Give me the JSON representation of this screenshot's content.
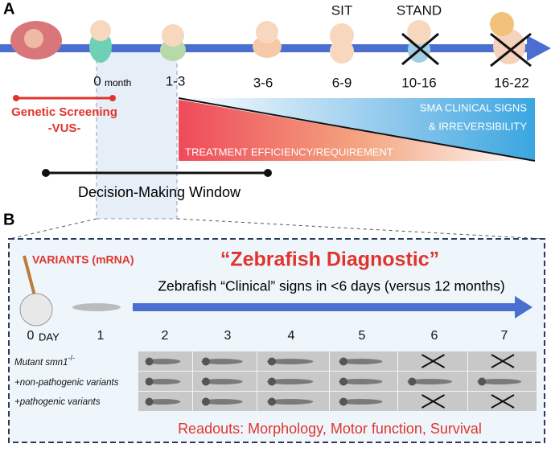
{
  "panel_a": {
    "label": "A",
    "milestones": [
      "SIT",
      "STAND"
    ],
    "ages": [
      "0",
      "1-3",
      "3-6",
      "6-9",
      "10-16",
      "16-22"
    ],
    "age_unit": "month",
    "screening": {
      "title": "Genetic Screening",
      "subtitle": "-VUS-"
    },
    "signs_label": [
      "SMA CLINICAL SIGNS",
      "& IRREVERSIBILITY"
    ],
    "treatment_label": "TREATMENT EFFICIENCY/REQUIREMENT",
    "window_label": "Decision-Making Window"
  },
  "panel_b": {
    "label": "B",
    "variants": "VARIANTS (mRNA)",
    "title": "“Zebrafish Diagnostic”",
    "subtitle": "Zebrafish “Clinical” signs in <6 days (versus 12 months)",
    "day_zero": "0",
    "day_unit": "DAY",
    "days": [
      "1",
      "2",
      "3",
      "4",
      "5",
      "6",
      "7"
    ],
    "rows": [
      "Mutant smn1",
      "+non-pathogenic variants",
      "+pathogenic variants"
    ],
    "row_superscript": "-/-",
    "readouts": "Readouts: Morphology, Motor function, Survival"
  }
}
